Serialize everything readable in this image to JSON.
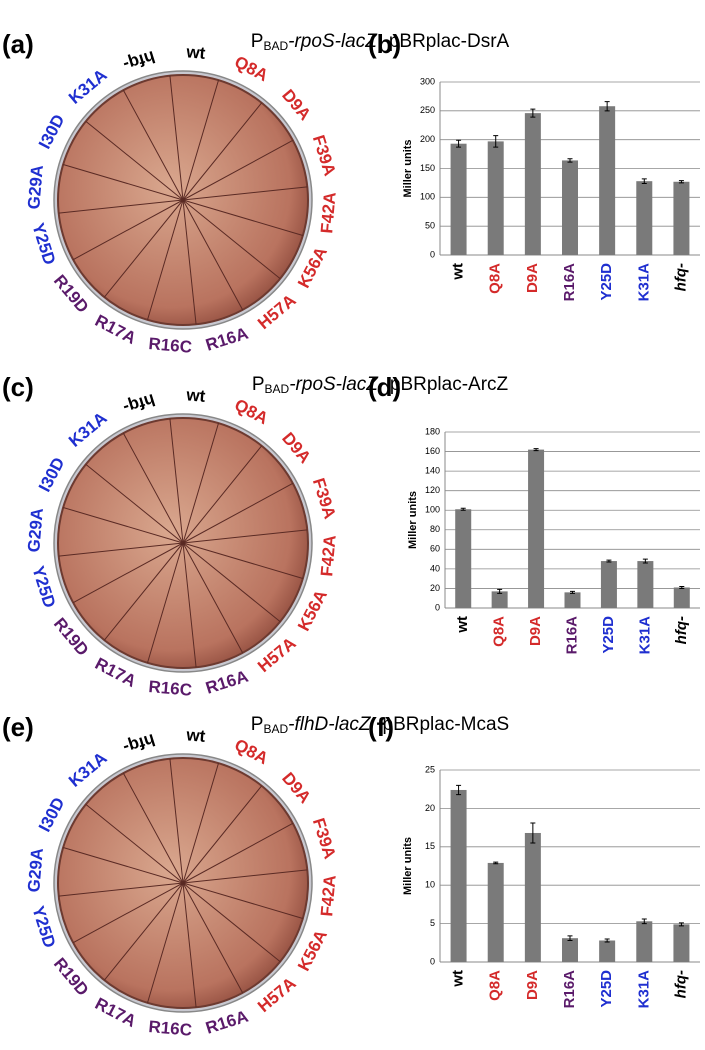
{
  "plates": [
    {
      "label": "(a)",
      "title": {
        "promoter": "P",
        "subscript": "BAD",
        "gene": "-rpoS-lacZ",
        "plasmid": "pBRplac-DsrA"
      },
      "strains": [
        "wt",
        "Q8A",
        "D9A",
        "F39A",
        "F42A",
        "K56A",
        "H57A",
        "R16A",
        "R16C",
        "R17A",
        "R19D",
        "Y25D",
        "G29A",
        "I30D",
        "K31A",
        "hfq-"
      ],
      "strain_colors": [
        "#000000",
        "#d42a2a",
        "#d42a2a",
        "#d42a2a",
        "#d42a2a",
        "#d42a2a",
        "#d42a2a",
        "#5a1a6a",
        "#5a1a6a",
        "#5a1a6a",
        "#5a1a6a",
        "#1f2fd0",
        "#1f2fd0",
        "#1f2fd0",
        "#1f2fd0",
        "#000000"
      ]
    },
    {
      "label": "(c)",
      "title": {
        "promoter": "P",
        "subscript": "BAD",
        "gene": "-rpoS-lacZ",
        "plasmid": "pBRplac-ArcZ"
      },
      "strains": [
        "wt",
        "Q8A",
        "D9A",
        "F39A",
        "F42A",
        "K56A",
        "H57A",
        "R16A",
        "R16C",
        "R17A",
        "R19D",
        "Y25D",
        "G29A",
        "I30D",
        "K31A",
        "hfq-"
      ],
      "strain_colors": [
        "#000000",
        "#d42a2a",
        "#d42a2a",
        "#d42a2a",
        "#d42a2a",
        "#d42a2a",
        "#d42a2a",
        "#5a1a6a",
        "#5a1a6a",
        "#5a1a6a",
        "#5a1a6a",
        "#1f2fd0",
        "#1f2fd0",
        "#1f2fd0",
        "#1f2fd0",
        "#000000"
      ]
    },
    {
      "label": "(e)",
      "title": {
        "promoter": "P",
        "subscript": "BAD",
        "gene": "-flhD-lacZ",
        "plasmid": "pBRplac-McaS"
      },
      "strains": [
        "wt",
        "Q8A",
        "D9A",
        "F39A",
        "F42A",
        "K56A",
        "H57A",
        "R16A",
        "R16C",
        "R17A",
        "R19D",
        "Y25D",
        "G29A",
        "I30D",
        "K31A",
        "hfq-"
      ],
      "strain_colors": [
        "#000000",
        "#d42a2a",
        "#d42a2a",
        "#d42a2a",
        "#d42a2a",
        "#d42a2a",
        "#d42a2a",
        "#5a1a6a",
        "#5a1a6a",
        "#5a1a6a",
        "#5a1a6a",
        "#1f2fd0",
        "#1f2fd0",
        "#1f2fd0",
        "#1f2fd0",
        "#000000"
      ]
    }
  ],
  "chart_data": [
    {
      "type": "bar",
      "label": "(b)",
      "ylabel": "Miller units",
      "categories": [
        "wt",
        "Q8A",
        "D9A",
        "R16A",
        "Y25D",
        "K31A",
        "hfq-"
      ],
      "category_colors": [
        "#000000",
        "#d42a2a",
        "#d42a2a",
        "#5a1a6a",
        "#1f2fd0",
        "#1f2fd0",
        "#000000"
      ],
      "values": [
        193,
        197,
        246,
        164,
        258,
        128,
        127
      ],
      "errors": [
        6,
        10,
        7,
        3,
        8,
        4,
        2
      ],
      "color": "#7a7a7a",
      "ylim": [
        0,
        300
      ],
      "yticks": [
        0,
        50,
        100,
        150,
        200,
        250,
        300
      ],
      "grid": true
    },
    {
      "type": "bar",
      "label": "(d)",
      "ylabel": "Miller units",
      "categories": [
        "wt",
        "Q8A",
        "D9A",
        "R16A",
        "Y25D",
        "K31A",
        "hfq-"
      ],
      "category_colors": [
        "#000000",
        "#d42a2a",
        "#d42a2a",
        "#5a1a6a",
        "#1f2fd0",
        "#1f2fd0",
        "#000000"
      ],
      "values": [
        101,
        17,
        162,
        16,
        48,
        48,
        21
      ],
      "errors": [
        1,
        2,
        1,
        1,
        1,
        2,
        1
      ],
      "color": "#7a7a7a",
      "ylim": [
        0,
        180
      ],
      "yticks": [
        0,
        20,
        40,
        60,
        80,
        100,
        120,
        140,
        160,
        180
      ],
      "grid": true
    },
    {
      "type": "bar",
      "label": "(f)",
      "ylabel": "Miller units",
      "categories": [
        "wt",
        "Q8A",
        "D9A",
        "R16A",
        "Y25D",
        "K31A",
        "hfq-"
      ],
      "category_colors": [
        "#000000",
        "#d42a2a",
        "#d42a2a",
        "#5a1a6a",
        "#1f2fd0",
        "#1f2fd0",
        "#000000"
      ],
      "values": [
        22.4,
        12.9,
        16.8,
        3.1,
        2.8,
        5.3,
        4.9
      ],
      "errors": [
        0.6,
        0.1,
        1.3,
        0.3,
        0.2,
        0.3,
        0.2
      ],
      "color": "#7a7a7a",
      "ylim": [
        0,
        25
      ],
      "yticks": [
        0,
        5,
        10,
        15,
        20,
        25
      ],
      "grid": true
    }
  ]
}
